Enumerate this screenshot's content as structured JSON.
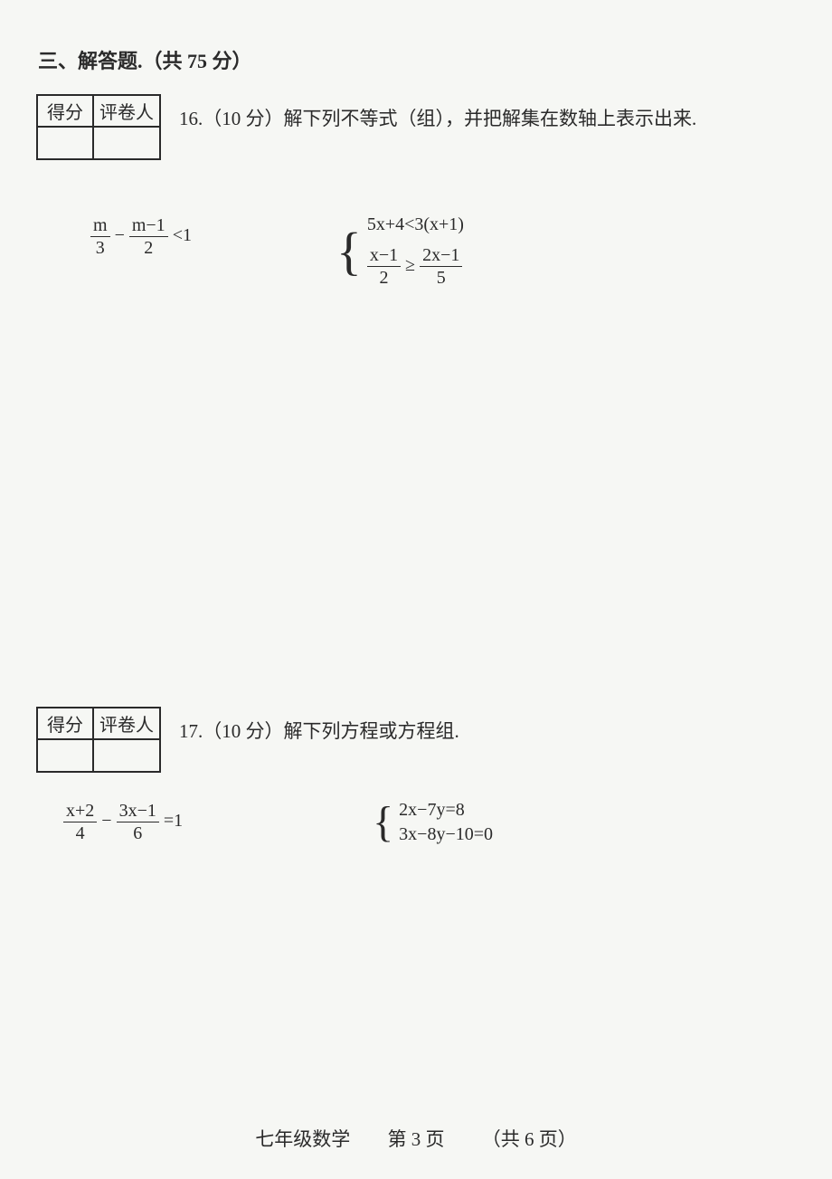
{
  "section": {
    "title": "三、解答题.（共 75 分）"
  },
  "scoreTable": {
    "colScore": "得分",
    "colReviewer": "评卷人"
  },
  "q16": {
    "text": "16.（10 分）解下列不等式（组），并把解集在数轴上表示出来.",
    "ineq1": {
      "f1_top": "m",
      "f1_bot": "3",
      "minus": "−",
      "f2_top": "m−1",
      "f2_bot": "2",
      "rel": "<1"
    },
    "sys": {
      "line1_lhs": "5x+4<3(x+1)",
      "line2_f1_top": "x−1",
      "line2_f1_bot": "2",
      "line2_rel": "≥",
      "line2_f2_top": "2x−1",
      "line2_f2_bot": "5"
    }
  },
  "q17": {
    "text": "17.（10 分）解下列方程或方程组.",
    "eq1": {
      "f1_top": "x+2",
      "f1_bot": "4",
      "minus": "−",
      "f2_top": "3x−1",
      "f2_bot": "6",
      "rhs": "=1"
    },
    "sys": {
      "line1": "2x−7y=8",
      "line2": "3x−8y−10=0"
    }
  },
  "footer": {
    "subject": "七年级数学",
    "page": "第 3 页",
    "total": "（共 6 页）"
  }
}
